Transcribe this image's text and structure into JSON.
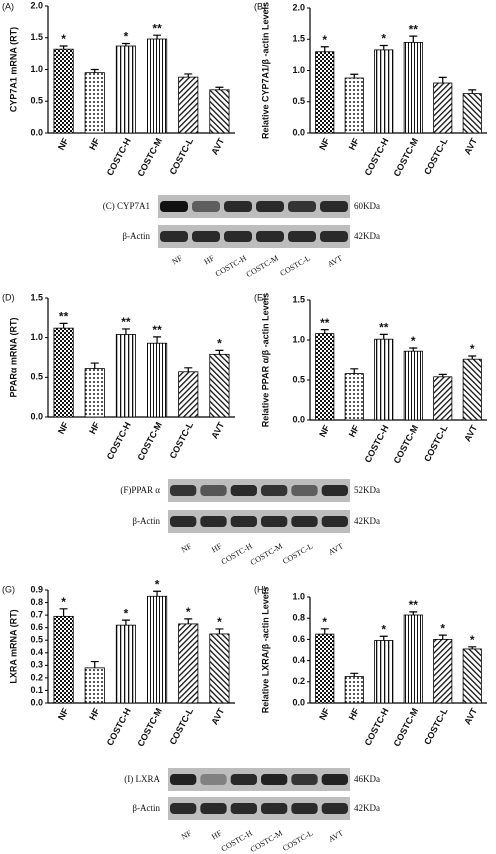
{
  "chart_data": [
    {
      "type": "bar",
      "panel": "(A)",
      "ylabel": "CYP7A1 mRNA (RT)",
      "categories": [
        "NF",
        "HF",
        "COSTC-H",
        "COSTC-M",
        "COSTC-L",
        "AVT"
      ],
      "values": [
        1.32,
        0.95,
        1.37,
        1.48,
        0.88,
        0.68
      ],
      "errors": [
        0.05,
        0.05,
        0.04,
        0.06,
        0.05,
        0.04
      ],
      "annotations": [
        "*",
        null,
        "*",
        "**",
        null,
        null
      ],
      "ylim": [
        0,
        2
      ],
      "yticks": [
        {
          "value": 0,
          "label": "0.0"
        },
        0.5,
        {
          "value": 1,
          "label": "1.0"
        },
        1.5,
        {
          "value": 2,
          "label": "2.0"
        }
      ]
    },
    {
      "type": "bar",
      "panel": "(B)",
      "ylabel": "Relative CYP7A1/β -actin Levels",
      "categories": [
        "NF",
        "HF",
        "COSTC-H",
        "COSTC-M",
        "COSTC-L",
        "AVT"
      ],
      "values": [
        1.3,
        0.88,
        1.33,
        1.45,
        0.8,
        0.63
      ],
      "errors": [
        0.08,
        0.06,
        0.07,
        0.1,
        0.09,
        0.06
      ],
      "annotations": [
        "*",
        null,
        "*",
        "**",
        null,
        null
      ],
      "ylim": [
        0,
        2
      ],
      "yticks": [
        {
          "value": 0,
          "label": "0.0"
        },
        0.5,
        {
          "value": 1,
          "label": "1.0"
        },
        1.5,
        {
          "value": 2,
          "label": "2.0"
        }
      ]
    },
    {
      "type": "bar",
      "panel": "(D)",
      "ylabel": "PPARα mRNA (RT)",
      "categories": [
        "NF",
        "HF",
        "COSTC-H",
        "COSTC-M",
        "COSTC-L",
        "AVT"
      ],
      "values": [
        1.12,
        0.61,
        1.04,
        0.93,
        0.57,
        0.79
      ],
      "errors": [
        0.06,
        0.07,
        0.07,
        0.08,
        0.05,
        0.05
      ],
      "annotations": [
        "**",
        null,
        "**",
        "**",
        null,
        "*"
      ],
      "ylim": [
        0,
        1.5
      ],
      "yticks": [
        {
          "value": 0,
          "label": "0.0"
        },
        0.5,
        {
          "value": 1,
          "label": "1.0"
        },
        1.5
      ]
    },
    {
      "type": "bar",
      "panel": "(E)",
      "ylabel": "Relative PPAR α/β -actin Levels",
      "categories": [
        "NF",
        "HF",
        "COSTC-H",
        "COSTC-M",
        "COSTC-L",
        "AVT"
      ],
      "values": [
        1.08,
        0.58,
        1.01,
        0.86,
        0.54,
        0.76
      ],
      "errors": [
        0.05,
        0.06,
        0.06,
        0.04,
        0.03,
        0.04
      ],
      "annotations": [
        "**",
        null,
        "**",
        "*",
        null,
        "*"
      ],
      "ylim": [
        0,
        1.5
      ],
      "yticks": [
        {
          "value": 0,
          "label": "0.0"
        },
        0.5,
        {
          "value": 1,
          "label": "1.0"
        },
        1.5
      ]
    },
    {
      "type": "bar",
      "panel": "(G)",
      "ylabel": "LXRA mRNA (RT)",
      "categories": [
        "NF",
        "HF",
        "COSTC-H",
        "COSTC-M",
        "COSTC-L",
        "AVT"
      ],
      "values": [
        0.69,
        0.28,
        0.62,
        0.85,
        0.63,
        0.55
      ],
      "errors": [
        0.06,
        0.05,
        0.04,
        0.04,
        0.04,
        0.04
      ],
      "annotations": [
        "*",
        null,
        "*",
        "*",
        "*",
        "*"
      ],
      "ylim": [
        0,
        0.9
      ],
      "yticks": [
        {
          "value": 0,
          "label": "0.0"
        },
        0.1,
        0.2,
        0.3,
        0.4,
        0.5,
        0.6,
        0.7,
        0.8,
        0.9
      ]
    },
    {
      "type": "bar",
      "panel": "(H)",
      "ylabel": "Relative LXRA/β -actin Levels",
      "categories": [
        "NF",
        "HF",
        "COSTC-H",
        "COSTC-M",
        "COSTC-L",
        "AVT"
      ],
      "values": [
        0.65,
        0.25,
        0.59,
        0.83,
        0.6,
        0.51
      ],
      "errors": [
        0.05,
        0.03,
        0.04,
        0.03,
        0.04,
        0.02
      ],
      "annotations": [
        "*",
        null,
        "*",
        "**",
        "*",
        "*"
      ],
      "ylim": [
        0,
        1
      ],
      "yticks": [
        {
          "value": 0,
          "label": "0.0"
        },
        0.2,
        0.4,
        0.6,
        0.8,
        {
          "value": 1,
          "label": "1.0"
        }
      ]
    }
  ],
  "blots": [
    {
      "label": "(C) CYP7A1",
      "kda": "60KDa",
      "actin": "β-Actin",
      "actin_kda": "42KDa",
      "lanes": [
        "NF",
        "HF",
        "COSTC-H",
        "COSTC-M",
        "COSTC-L",
        "AVT"
      ]
    },
    {
      "label": "(F)PPAR α",
      "kda": "52KDa",
      "actin": "β-Actin",
      "actin_kda": "42KDa",
      "lanes": [
        "NF",
        "HF",
        "COSTC-H",
        "COSTC-M",
        "COSTC-L",
        "AVT"
      ]
    },
    {
      "label": "(I) LXRA",
      "kda": "46KDa",
      "actin": "β-Actin",
      "actin_kda": "42KDa",
      "lanes": [
        "NF",
        "HF",
        "COSTC-H",
        "COSTC-M",
        "COSTC-L",
        "AVT"
      ]
    }
  ]
}
